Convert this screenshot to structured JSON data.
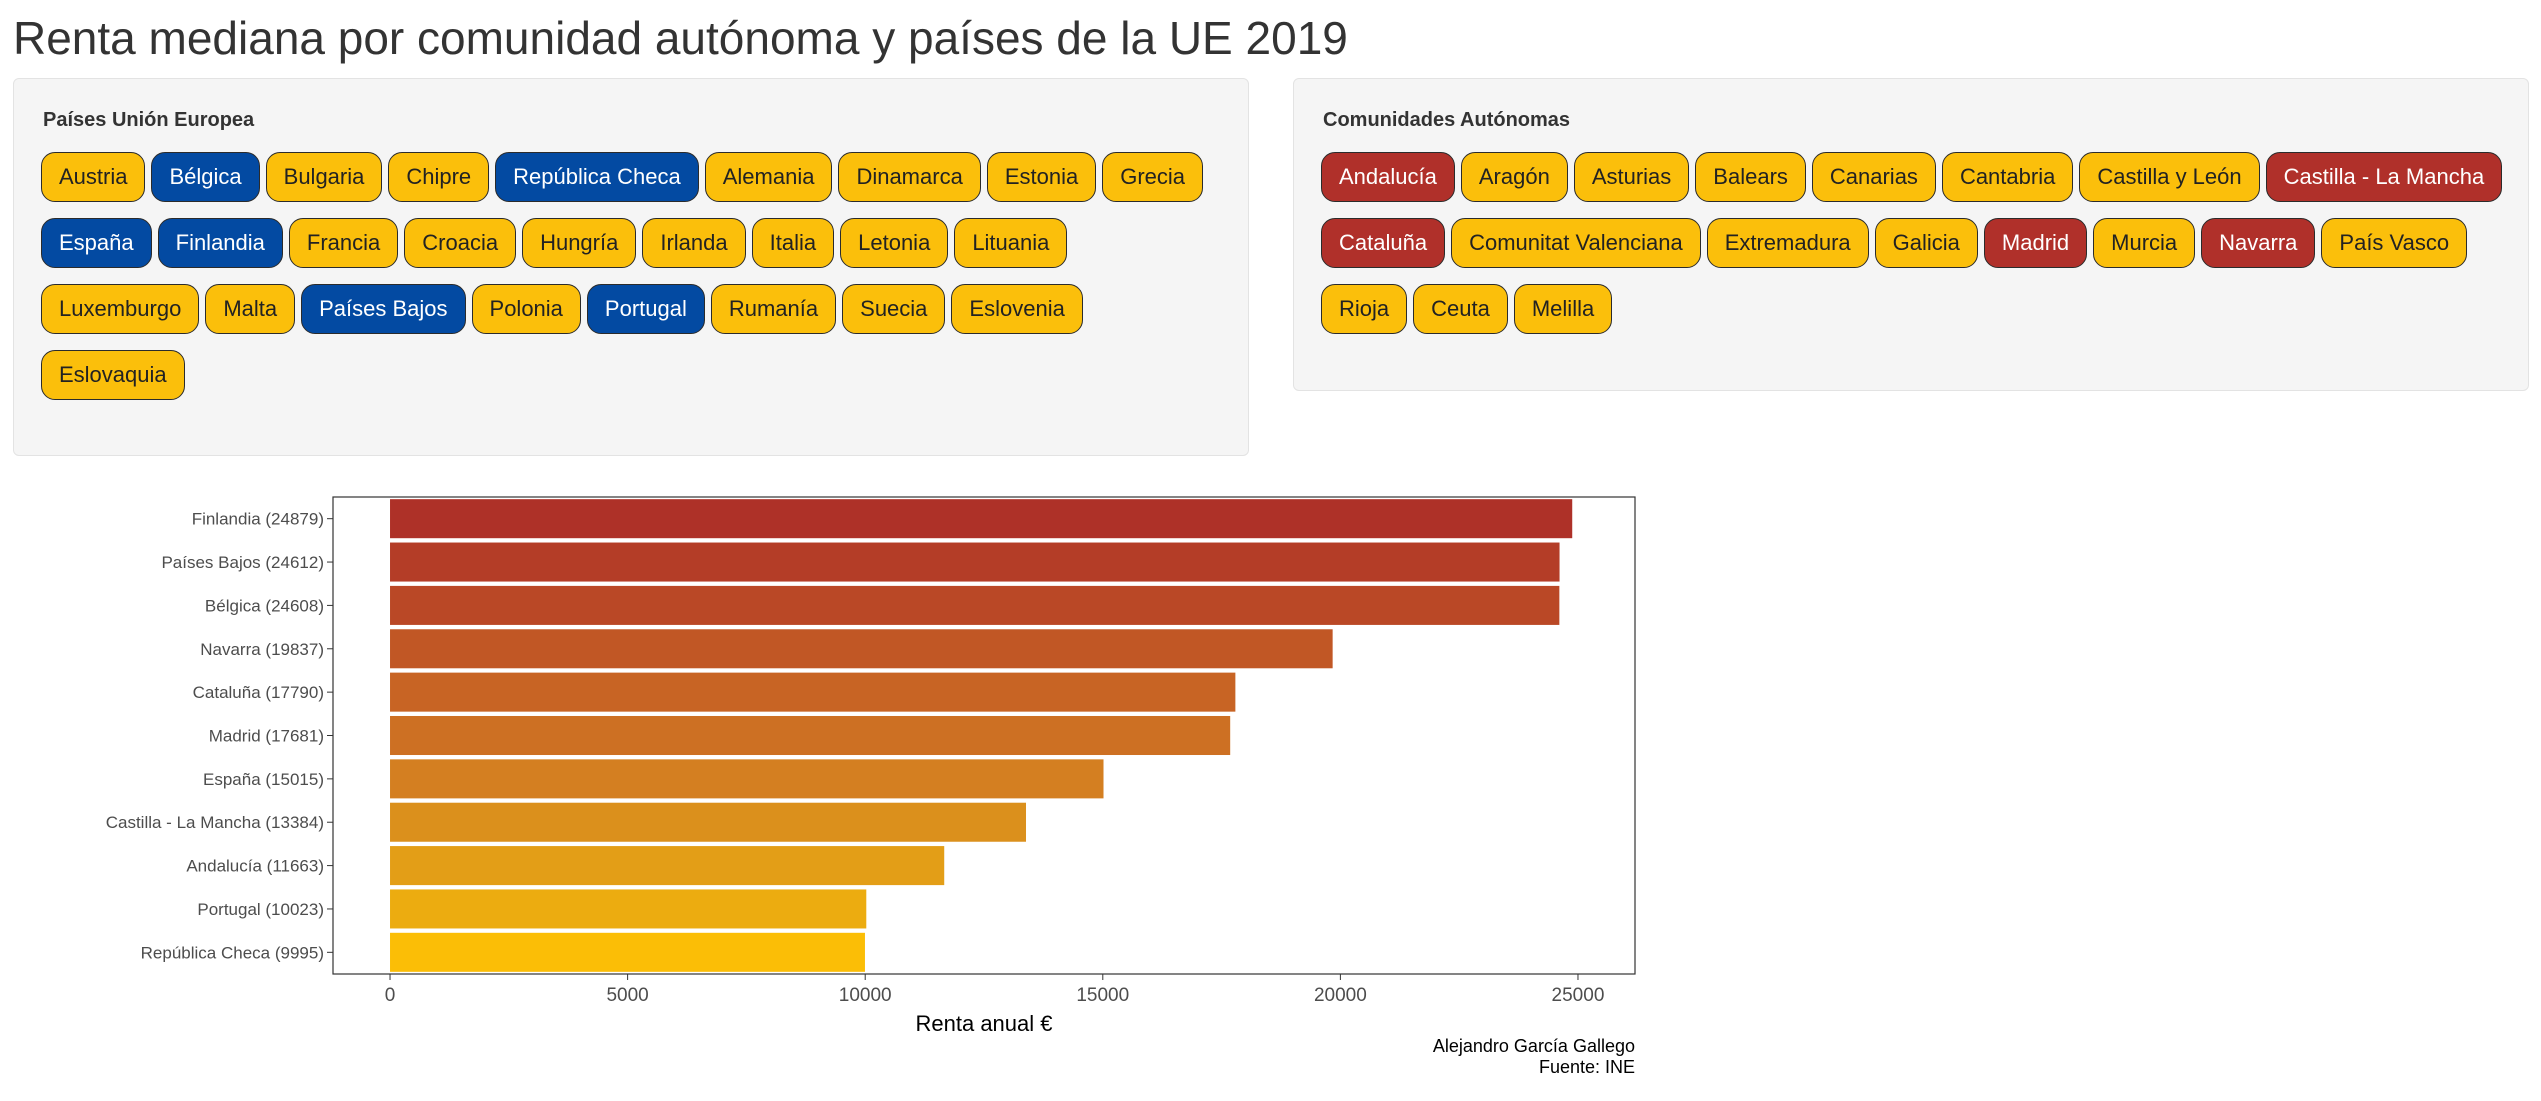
{
  "page": {
    "title": "Renta mediana por comunidad autónoma y países de la UE 2019"
  },
  "colors": {
    "unselected": "#fbbf0b",
    "selected_eu": "#034aa2",
    "selected_ca": "#b0302a"
  },
  "eu_panel": {
    "label": "Países Unión Europea",
    "options": [
      {
        "label": "Austria",
        "selected": false
      },
      {
        "label": "Bélgica",
        "selected": true
      },
      {
        "label": "Bulgaria",
        "selected": false
      },
      {
        "label": "Chipre",
        "selected": false
      },
      {
        "label": "República Checa",
        "selected": true
      },
      {
        "label": "Alemania",
        "selected": false
      },
      {
        "label": "Dinamarca",
        "selected": false
      },
      {
        "label": "Estonia",
        "selected": false
      },
      {
        "label": "Grecia",
        "selected": false
      },
      {
        "label": "España",
        "selected": true
      },
      {
        "label": "Finlandia",
        "selected": true
      },
      {
        "label": "Francia",
        "selected": false
      },
      {
        "label": "Croacia",
        "selected": false
      },
      {
        "label": "Hungría",
        "selected": false
      },
      {
        "label": "Irlanda",
        "selected": false
      },
      {
        "label": "Italia",
        "selected": false
      },
      {
        "label": "Letonia",
        "selected": false
      },
      {
        "label": "Lituania",
        "selected": false
      },
      {
        "label": "Luxemburgo",
        "selected": false
      },
      {
        "label": "Malta",
        "selected": false
      },
      {
        "label": "Países Bajos",
        "selected": true
      },
      {
        "label": "Polonia",
        "selected": false
      },
      {
        "label": "Portugal",
        "selected": true
      },
      {
        "label": "Rumanía",
        "selected": false
      },
      {
        "label": "Suecia",
        "selected": false
      },
      {
        "label": "Eslovenia",
        "selected": false
      },
      {
        "label": "Eslovaquia",
        "selected": false
      }
    ]
  },
  "ca_panel": {
    "label": "Comunidades Autónomas",
    "options": [
      {
        "label": "Andalucía",
        "selected": true
      },
      {
        "label": "Aragón",
        "selected": false
      },
      {
        "label": "Asturias",
        "selected": false
      },
      {
        "label": "Balears",
        "selected": false
      },
      {
        "label": "Canarias",
        "selected": false
      },
      {
        "label": "Cantabria",
        "selected": false
      },
      {
        "label": "Castilla y León",
        "selected": false
      },
      {
        "label": "Castilla - La Mancha",
        "selected": true
      },
      {
        "label": "Cataluña",
        "selected": true
      },
      {
        "label": "Comunitat Valenciana",
        "selected": false
      },
      {
        "label": "Extremadura",
        "selected": false
      },
      {
        "label": "Galicia",
        "selected": false
      },
      {
        "label": "Madrid",
        "selected": true
      },
      {
        "label": "Murcia",
        "selected": false
      },
      {
        "label": "Navarra",
        "selected": true
      },
      {
        "label": "País Vasco",
        "selected": false
      },
      {
        "label": "Rioja",
        "selected": false
      },
      {
        "label": "Ceuta",
        "selected": false
      },
      {
        "label": "Melilla",
        "selected": false
      }
    ]
  },
  "chart_data": {
    "type": "bar",
    "orientation": "horizontal",
    "xlabel": "Renta anual €",
    "ylabel": "",
    "xlim": [
      -1200,
      26200
    ],
    "xticks": [
      0,
      5000,
      10000,
      15000,
      20000,
      25000
    ],
    "categories": [
      "Finlandia (24879)",
      "Países Bajos (24612)",
      "Bélgica (24608)",
      "Navarra (19837)",
      "Cataluña (17790)",
      "Madrid (17681)",
      "España (15015)",
      "Castilla - La Mancha (13384)",
      "Andalucía (11663)",
      "Portugal (10023)",
      "República Checa (9995)"
    ],
    "values": [
      24879,
      24612,
      24608,
      19837,
      17790,
      17681,
      15015,
      13384,
      11663,
      10023,
      9995
    ],
    "bar_colors": [
      "#ae3128",
      "#b43d27",
      "#ba4826",
      "#c15725",
      "#c86424",
      "#cd7023",
      "#d47f21",
      "#db901c",
      "#e39e17",
      "#ecac10",
      "#fbbe06"
    ],
    "caption": [
      "Alejandro García Gallego",
      "Fuente: INE"
    ],
    "grid": false,
    "legend": "none"
  }
}
